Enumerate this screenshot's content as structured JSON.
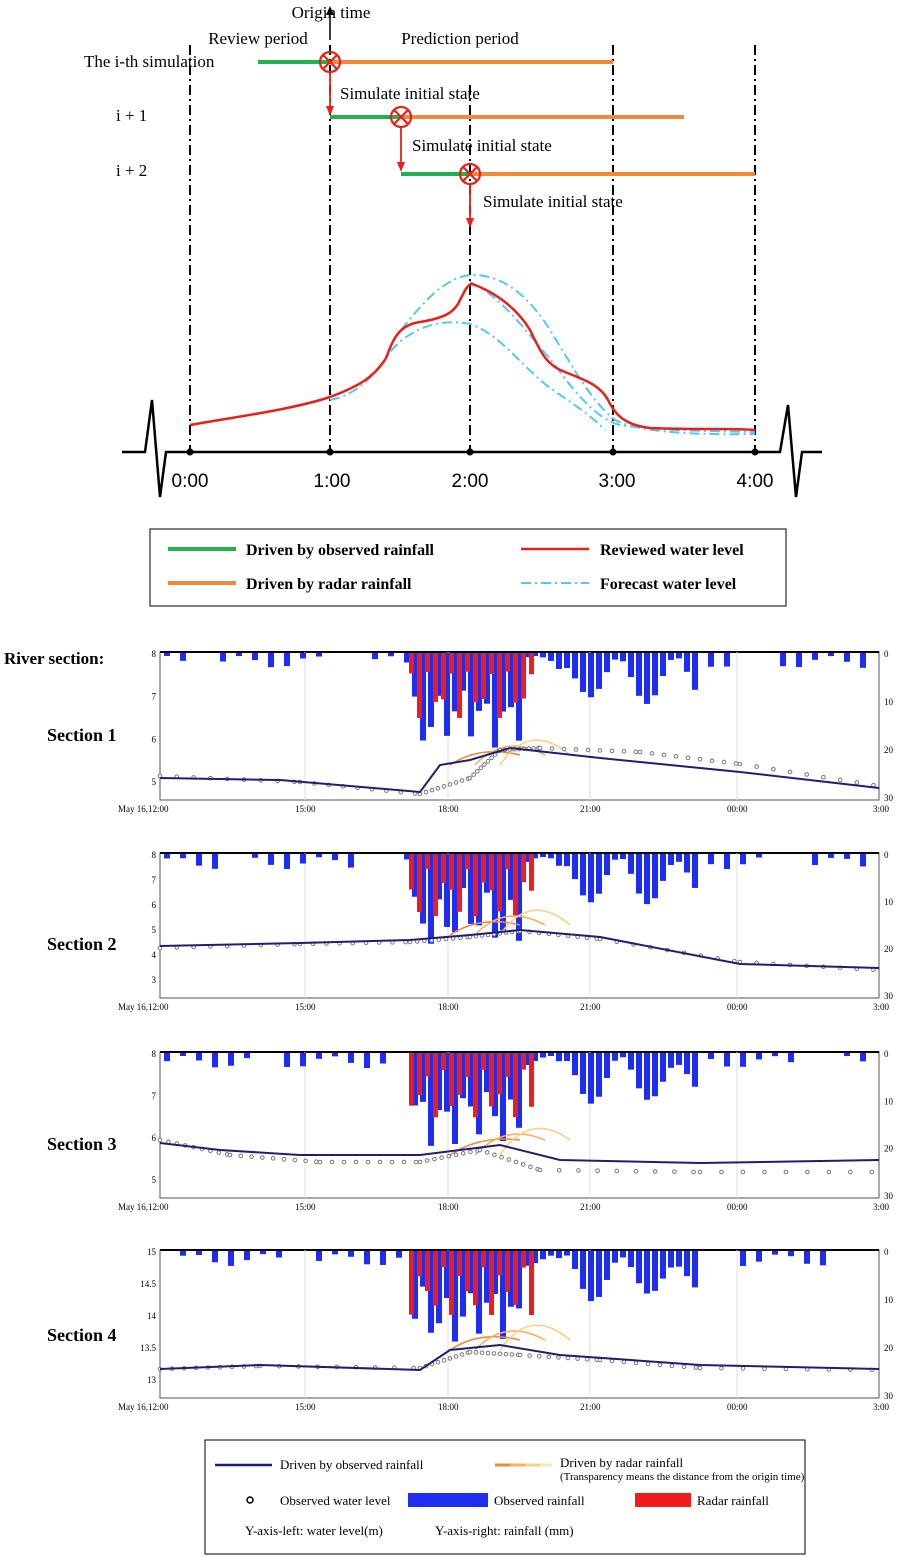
{
  "diagram": {
    "title_origin": "Origin time",
    "title_review": "Review period",
    "title_prediction": "Prediction period",
    "rows": [
      "The i-th simulation",
      "i + 1",
      "i + 2"
    ],
    "init_labels": [
      "Simulate initial state",
      "Simulate initial state",
      "Simulate initial state"
    ],
    "time_ticks": [
      "0:00",
      "1:00",
      "2:00",
      "3:00",
      "4:00"
    ],
    "legend": {
      "observed": "Driven by observed rainfall",
      "radar": "Driven by radar rainfall",
      "reviewed": "Reviewed water level",
      "forecast": "Forecast water level"
    },
    "colors": {
      "observed": "#22b14c",
      "radar": "#f08a3a",
      "reviewed": "#e8201a",
      "forecast": "#55c8ee"
    }
  },
  "sections": {
    "header": "River section:",
    "names": [
      "Section 1",
      "Section 2",
      "Section 3",
      "Section 4"
    ],
    "x_ticks": [
      "May 16,12:00",
      "15:00",
      "18:00",
      "21:00",
      "00:00",
      "3:00"
    ],
    "right_ticks": [
      "0",
      "10",
      "20",
      "30"
    ],
    "left_ticks": [
      [
        "8",
        "7",
        "6",
        "5"
      ],
      [
        "8",
        "7",
        "6",
        "5",
        "4",
        "3"
      ],
      [
        "8",
        "7",
        "6",
        "5"
      ],
      [
        "15",
        "14.5",
        "14",
        "13.5",
        "13"
      ]
    ],
    "colors": {
      "observed_line": "#1f1f6e",
      "obs_rain": "#1e2ef0",
      "radar_rain": "#f01c1c",
      "obs_point": "#777777"
    }
  },
  "legend2": {
    "observed_line": "Driven by observed rainfall",
    "radar_line": "Driven by radar rainfall",
    "transparency": "(Transparency means the distance from the origin time)",
    "observed_level": "Observed water level",
    "observed_rain": "Observed rainfall",
    "radar_rain": "Radar rainfall",
    "yleft": "Y-axis-left: water level(m)",
    "yright": "Y-axis-right: rainfall (mm)"
  }
}
